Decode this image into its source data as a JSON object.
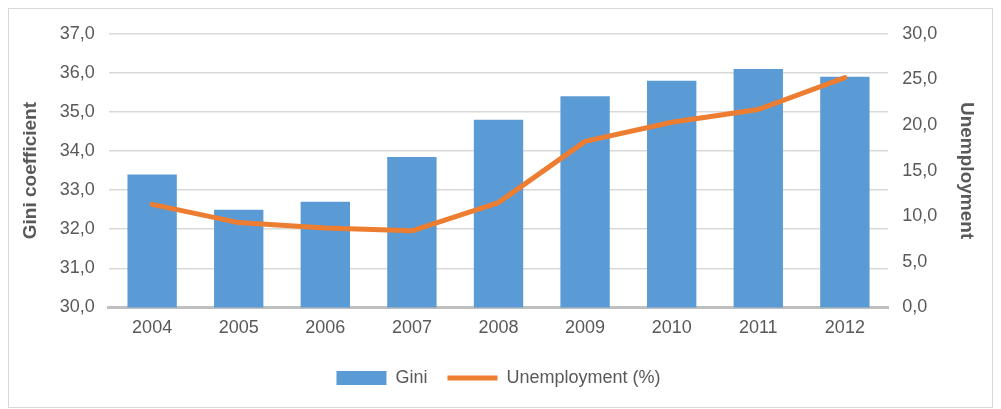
{
  "chart_data": {
    "type": "bar",
    "ylabel": "Gini coefficient",
    "y2label": "Unemployment",
    "categories": [
      "2004",
      "2005",
      "2006",
      "2007",
      "2008",
      "2009",
      "2010",
      "2011",
      "2012"
    ],
    "series": [
      {
        "name": "Gini",
        "color": "#5b9bd5",
        "values": [
          33.4,
          32.5,
          32.7,
          33.85,
          34.8,
          35.4,
          35.8,
          36.1,
          35.9
        ]
      },
      {
        "name": "Unemployment (%)",
        "type": "line",
        "axis": "y2",
        "color": "#ed7d31",
        "values": [
          11.3,
          9.3,
          8.7,
          8.4,
          11.5,
          18.2,
          20.3,
          21.7,
          25.2
        ]
      }
    ],
    "ylim": [
      30,
      37
    ],
    "yticks": [
      {
        "value": 30,
        "label": "30,0"
      },
      {
        "value": 31,
        "label": "31,0"
      },
      {
        "value": 32,
        "label": "32,0"
      },
      {
        "value": 33,
        "label": "33,0"
      },
      {
        "value": 34,
        "label": "34,0"
      },
      {
        "value": 35,
        "label": "35,0"
      },
      {
        "value": 36,
        "label": "36,0"
      },
      {
        "value": 37,
        "label": "37,0"
      }
    ],
    "y2lim": [
      0,
      30
    ],
    "y2ticks": [
      {
        "value": 0,
        "label": "0,0"
      },
      {
        "value": 5,
        "label": "5,0"
      },
      {
        "value": 10,
        "label": "10,0"
      },
      {
        "value": 15,
        "label": "15,0"
      },
      {
        "value": 20,
        "label": "20,0"
      },
      {
        "value": 25,
        "label": "25,0"
      },
      {
        "value": 30,
        "label": "30,0"
      }
    ],
    "grid": "y",
    "legend": "bottom",
    "marker": "none"
  }
}
